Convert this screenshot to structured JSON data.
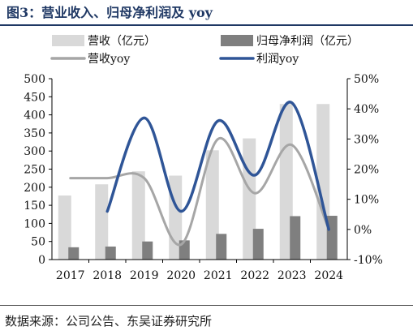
{
  "figure": {
    "title": "图3：营业收入、归母净利润及 yoy",
    "source": "数据来源：公司公告、东吴证券研究所"
  },
  "chart_data": {
    "type": "bar",
    "categories": [
      "2017",
      "2018",
      "2019",
      "2020",
      "2021",
      "2022",
      "2023",
      "2024"
    ],
    "series": [
      {
        "name": "营收（亿元）",
        "type": "bar",
        "axis": "left",
        "color": "#d9d9d9",
        "values": [
          177,
          208,
          244,
          232,
          302,
          335,
          430,
          430
        ]
      },
      {
        "name": "归母净利润（亿元）",
        "type": "bar",
        "axis": "left",
        "color": "#7f7f7f",
        "values": [
          34,
          36,
          50,
          53,
          71,
          85,
          120,
          121
        ]
      },
      {
        "name": "营收yoy",
        "type": "line",
        "axis": "right",
        "color": "#a6a6a6",
        "values": [
          17,
          17,
          17,
          -5,
          30,
          12,
          28,
          0
        ]
      },
      {
        "name": "利润yoy",
        "type": "line",
        "axis": "right",
        "color": "#2f5597",
        "values": [
          null,
          6,
          37,
          6,
          36,
          18,
          42,
          0
        ]
      }
    ],
    "y_left": {
      "min": 0,
      "max": 500,
      "step": 50,
      "ticks": [
        "0",
        "50",
        "100",
        "150",
        "200",
        "250",
        "300",
        "350",
        "400",
        "450",
        "500"
      ]
    },
    "y_right": {
      "min": -10,
      "max": 50,
      "step": 10,
      "ticks": [
        "-10%",
        "0%",
        "10%",
        "20%",
        "30%",
        "40%",
        "50%"
      ]
    },
    "legend_position": "top",
    "grid": false
  }
}
